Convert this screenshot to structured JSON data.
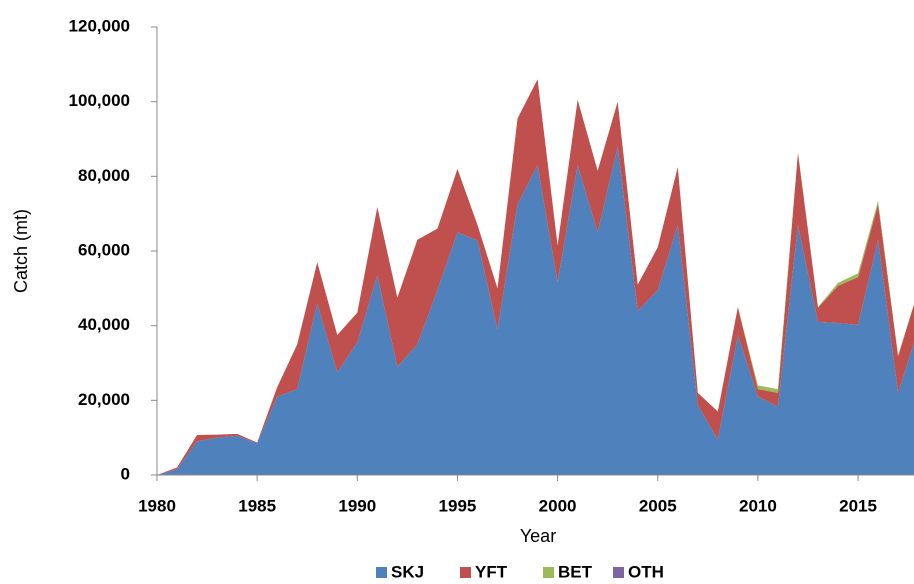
{
  "chart_data": {
    "type": "stacked_area",
    "x_label": "Year",
    "y_label": "Catch (mt)",
    "x": [
      1980,
      1981,
      1982,
      1983,
      1984,
      1985,
      1986,
      1987,
      1988,
      1989,
      1990,
      1991,
      1992,
      1993,
      1994,
      1995,
      1996,
      1997,
      1998,
      1999,
      2000,
      2001,
      2002,
      2003,
      2004,
      2005,
      2006,
      2007,
      2008,
      2009,
      2010,
      2011,
      2012,
      2013,
      2014,
      2015,
      2016,
      2017,
      2018
    ],
    "series": [
      {
        "name": "SKJ",
        "color": "#4f81bd",
        "values": [
          0,
          1500,
          9000,
          10000,
          10500,
          8500,
          21000,
          23000,
          46000,
          27500,
          35500,
          53500,
          29000,
          35000,
          49500,
          65000,
          62800,
          39000,
          72500,
          83000,
          51700,
          83000,
          65000,
          88000,
          44000,
          49500,
          67000,
          18700,
          9500,
          37500,
          21000,
          18300,
          67000,
          41000,
          40700,
          40200,
          63000,
          22000,
          39000
        ]
      },
      {
        "name": "YFT",
        "color": "#c0504d",
        "values": [
          0,
          500,
          1700,
          800,
          500,
          200,
          2500,
          12000,
          11000,
          10000,
          8000,
          18300,
          18500,
          28000,
          16500,
          17000,
          4200,
          11000,
          23000,
          23000,
          9800,
          17500,
          16500,
          12000,
          7000,
          11500,
          15500,
          3300,
          7500,
          7500,
          2000,
          3700,
          19300,
          3800,
          10000,
          12800,
          9500,
          9800,
          10300
        ]
      },
      {
        "name": "BET",
        "color": "#9bbb59",
        "values": [
          0,
          0,
          0,
          0,
          0,
          0,
          0,
          0,
          0,
          0,
          0,
          0,
          0,
          0,
          0,
          0,
          0,
          0,
          0,
          0,
          0,
          0,
          0,
          0,
          0,
          0,
          0,
          0,
          0,
          0,
          1000,
          1000,
          200,
          200,
          800,
          1000,
          1000,
          200,
          200
        ]
      },
      {
        "name": "OTH",
        "color": "#8064a2",
        "values": [
          0,
          0,
          0,
          0,
          0,
          0,
          0,
          0,
          0,
          0,
          0,
          0,
          0,
          0,
          0,
          0,
          0,
          0,
          0,
          0,
          0,
          0,
          0,
          0,
          0,
          0,
          0,
          0,
          0,
          0,
          0,
          0,
          0,
          0,
          0,
          0,
          0,
          0,
          0
        ]
      }
    ],
    "xlim": [
      1980,
      2018
    ],
    "xticks": [
      1980,
      1985,
      1990,
      1995,
      2000,
      2005,
      2010,
      2015
    ],
    "ylim": [
      0,
      120000
    ],
    "yticks": [
      0,
      {
        "value": 20000,
        "label": "20,000"
      },
      {
        "value": 40000,
        "label": "40,000"
      },
      {
        "value": 60000,
        "label": "60,000"
      },
      {
        "value": 80000,
        "label": "80,000"
      },
      {
        "value": 100000,
        "label": "100,000"
      },
      {
        "value": 120000,
        "label": "120,000"
      }
    ],
    "legend": "bottom"
  }
}
